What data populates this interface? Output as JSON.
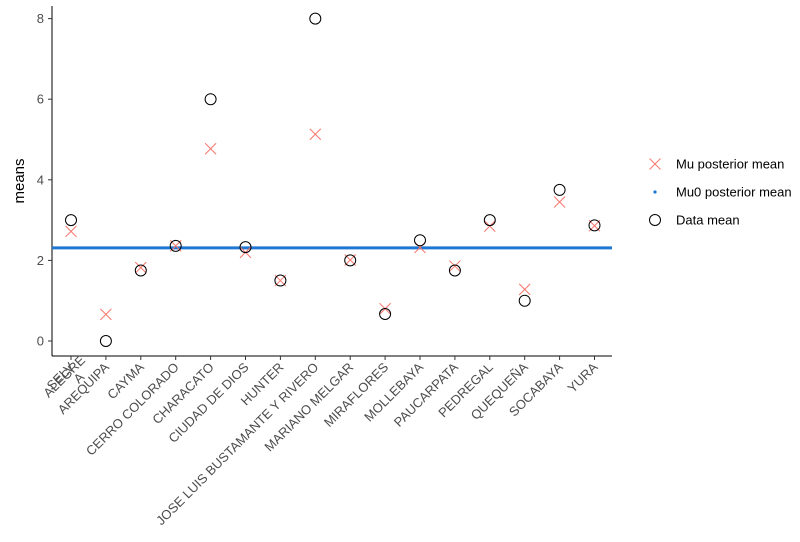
{
  "chart_data": {
    "type": "scatter",
    "title": "",
    "xlabel": "",
    "ylabel": "means",
    "ylim": [
      0,
      8
    ],
    "yticks": [
      0,
      2,
      4,
      6,
      8
    ],
    "grid": false,
    "legend_position": "right",
    "categories": [
      "SELVA ALEGRE",
      "AREQUIPA",
      "CAYMA",
      "CERRO COLORADO",
      "CHARACATO",
      "CIUDAD DE DIOS",
      "HUNTER",
      "JOSE LUIS BUSTAMANTE Y RIVERO",
      "MARIANO MELGAR",
      "MIRAFLORES",
      "MOLLEBAYA",
      "PAUCARPATA",
      "PEDREGAL",
      "QUEQUEÑA",
      "SOCABAYA",
      "YURA"
    ],
    "first_category_lines": [
      "SELV",
      "A",
      "ALEGRE"
    ],
    "series": [
      {
        "name": "Mu posterior mean",
        "marker": "x",
        "color": "#f8766d",
        "values": [
          2.72,
          0.66,
          1.82,
          2.36,
          4.77,
          2.2,
          1.5,
          5.13,
          2.01,
          0.8,
          2.32,
          1.86,
          2.85,
          1.28,
          3.45,
          2.86
        ]
      },
      {
        "name": "Mu0 posterior mean",
        "marker": "hline",
        "color": "#1f77d4",
        "value": 2.31
      },
      {
        "name": "Data mean",
        "marker": "circle",
        "color": "#000000",
        "values": [
          3.0,
          0.0,
          1.75,
          2.36,
          6.0,
          2.33,
          1.5,
          8.0,
          2.0,
          0.67,
          2.5,
          1.75,
          3.0,
          1.0,
          3.75,
          2.87
        ]
      }
    ]
  }
}
